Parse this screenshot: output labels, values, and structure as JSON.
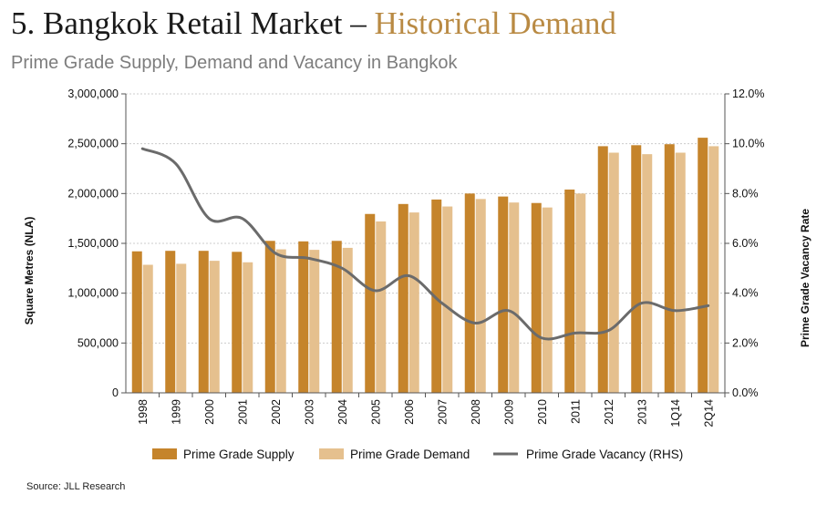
{
  "header": {
    "title_main": "5. Bangkok Retail Market – ",
    "title_accent": "Historical Demand",
    "subtitle": "Prime Grade Supply, Demand and Vacancy in Bangkok"
  },
  "footer": {
    "source": "Source: JLL Research"
  },
  "colors": {
    "supply": "#c5842b",
    "demand": "#e5c08e",
    "vacancy": "#6b6b6b",
    "accent": "#b98a43",
    "grid": "#cccccc"
  },
  "chart_data": {
    "type": "bar",
    "title": "Prime Grade Supply, Demand and Vacancy in Bangkok",
    "categories": [
      "1998",
      "1999",
      "2000",
      "2001",
      "2002",
      "2003",
      "2004",
      "2005",
      "2006",
      "2007",
      "2008",
      "2009",
      "2010",
      "2011",
      "2012",
      "2013",
      "1Q14",
      "2Q14"
    ],
    "series": [
      {
        "name": "Prime Grade Supply",
        "type": "bar",
        "axis": "left",
        "values": [
          1420000,
          1425000,
          1425000,
          1415000,
          1525000,
          1520000,
          1525000,
          1795000,
          1895000,
          1940000,
          2000000,
          1970000,
          1905000,
          2040000,
          2475000,
          2485000,
          2495000,
          2560000
        ]
      },
      {
        "name": "Prime Grade Demand",
        "type": "bar",
        "axis": "left",
        "values": [
          1285000,
          1295000,
          1325000,
          1310000,
          1440000,
          1435000,
          1455000,
          1720000,
          1810000,
          1870000,
          1945000,
          1910000,
          1860000,
          2000000,
          2410000,
          2395000,
          2410000,
          2475000
        ]
      },
      {
        "name": "Prime Grade Vacancy (RHS)",
        "type": "line",
        "axis": "right",
        "values": [
          9.8,
          9.2,
          7.0,
          7.0,
          5.6,
          5.4,
          5.0,
          4.1,
          4.7,
          3.6,
          2.8,
          3.3,
          2.2,
          2.4,
          2.5,
          3.6,
          3.3,
          3.5
        ]
      }
    ],
    "ylabel": "Square Metres (NLA)",
    "ylabel_right": "Prime Grade Vacancy Rate",
    "ylim": [
      0,
      3000000
    ],
    "ylim_right": [
      0,
      12
    ],
    "yticks": [
      "0",
      "500,000",
      "1,000,000",
      "1,500,000",
      "2,000,000",
      "2,500,000",
      "3,000,000"
    ],
    "yticks_right": [
      "0.0%",
      "2.0%",
      "4.0%",
      "6.0%",
      "8.0%",
      "10.0%",
      "12.0%"
    ],
    "grid": true,
    "legend_position": "bottom"
  }
}
